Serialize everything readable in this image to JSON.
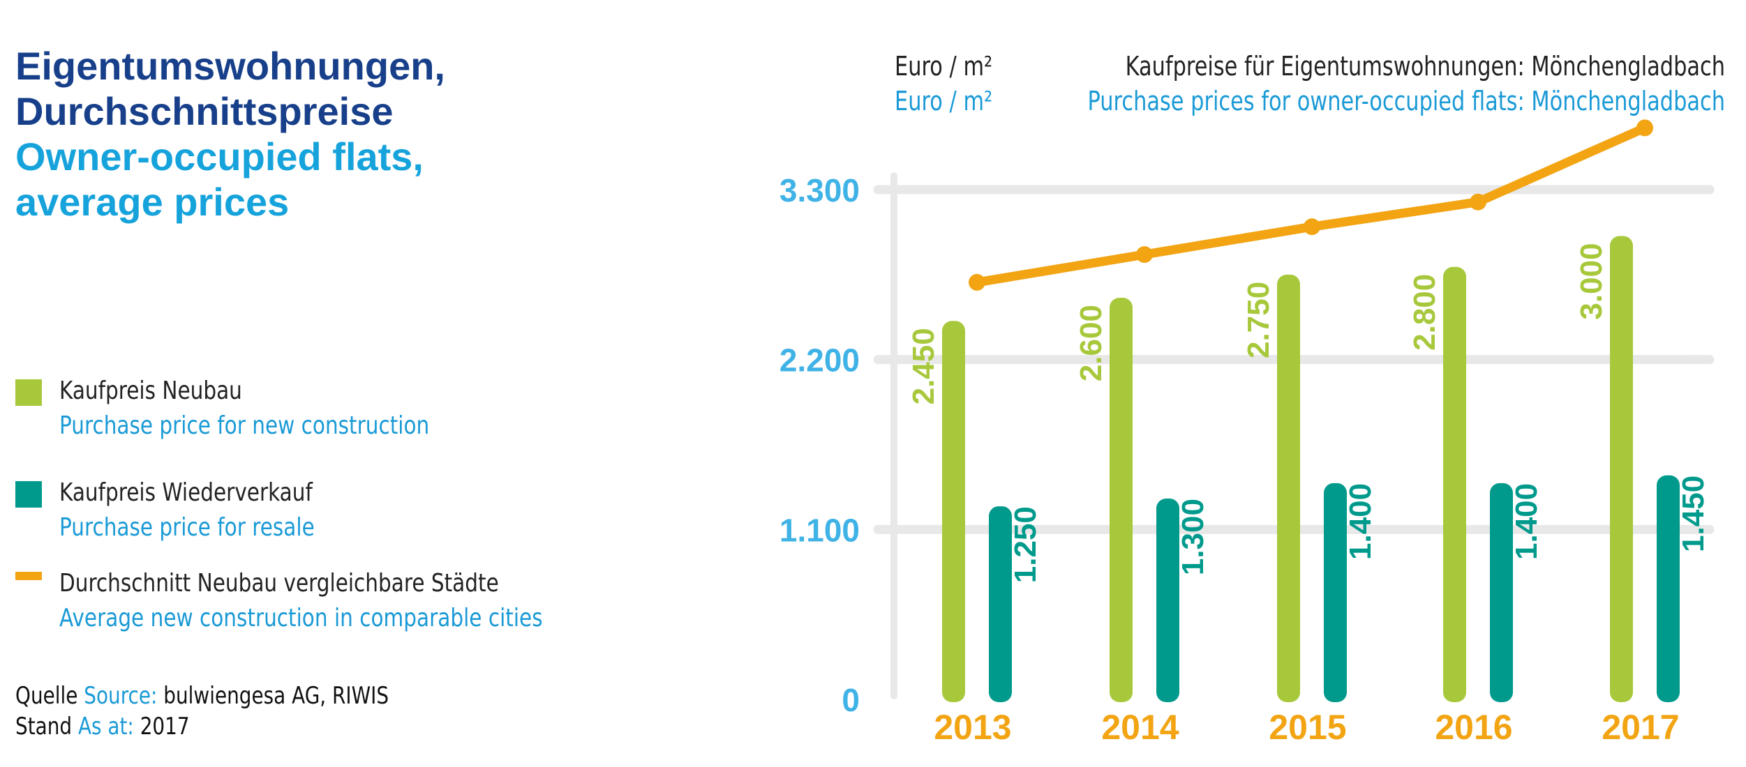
{
  "heading": {
    "de_line1": "Eigentumswohnungen,",
    "de_line2": "Durchschnittspreise",
    "en_line1": "Owner-occupied flats,",
    "en_line2": "average prices"
  },
  "legend": [
    {
      "de": "Kaufpreis Neubau",
      "en": "Purchase price for new construction",
      "color": "#a8c83c"
    },
    {
      "de": "Kaufpreis Wiederverkauf",
      "en": "Purchase price for resale",
      "color": "#009a8c"
    },
    {
      "de": "Durchschnitt Neubau vergleichbare Städte",
      "en": "Average new construction in comparable cities",
      "color": "#f2a413"
    }
  ],
  "source": {
    "quelle_label": "Quelle",
    "source_label": "Source:",
    "source_value": "bulwiengesa AG, RIWIS",
    "stand_label": "Stand",
    "as_at_label": "As at:",
    "as_at_value": "2017"
  },
  "chart_data": {
    "type": "bar",
    "title_de": "Kaufpreise für Eigentumswohnungen: Mönchengladbach",
    "title_en": "Purchase prices for owner-occupied flats: Mönchengladbach",
    "unit_de": "Euro / m²",
    "unit_en": "Euro / m²",
    "categories": [
      "2013",
      "2014",
      "2015",
      "2016",
      "2017"
    ],
    "y_ticks": [
      0,
      1100,
      2200,
      3300
    ],
    "y_tick_labels": [
      "0",
      "1.100",
      "2.200",
      "3.300"
    ],
    "ylim": [
      0,
      3300
    ],
    "grid": true,
    "series": [
      {
        "type": "bar",
        "values": [
          2450,
          2600,
          2750,
          2800,
          3000
        ],
        "labels": [
          "2.450",
          "2.600",
          "2.750",
          "2.800",
          "3.000"
        ],
        "color": "#a8c83c"
      },
      {
        "type": "bar",
        "values": [
          1250,
          1300,
          1400,
          1400,
          1450
        ],
        "labels": [
          "1.250",
          "1.300",
          "1.400",
          "1.400",
          "1.450"
        ],
        "color": "#009a8c"
      },
      {
        "type": "line",
        "values": [
          2700,
          2880,
          3060,
          3220,
          3700
        ],
        "color": "#f2a413"
      }
    ]
  }
}
